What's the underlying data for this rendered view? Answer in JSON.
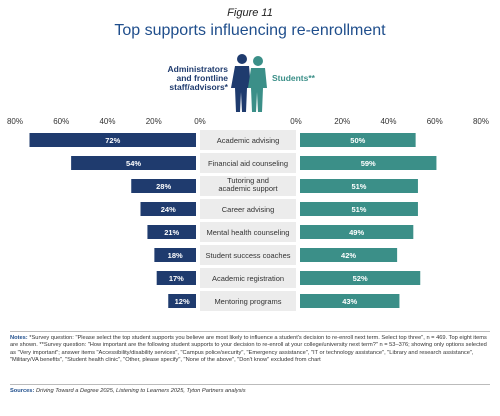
{
  "figure_label": "Figure 11",
  "title": "Top supports influencing re-enrollment",
  "legend": {
    "admin": "Administrators and frontline staff/advisors*",
    "students": "Students**"
  },
  "colors": {
    "admin": "#1f3b6e",
    "students": "#3b8f88",
    "label_bg": "#ececec"
  },
  "chart_data": {
    "type": "bar",
    "orientation": "horizontal-butterfly",
    "categories": [
      "Academic advising",
      "Financial aid counseling",
      "Tutoring and academic support",
      "Career advising",
      "Mental health counseling",
      "Student success coaches",
      "Academic registration",
      "Mentoring programs"
    ],
    "series": [
      {
        "name": "Administrators and frontline staff/advisors*",
        "values": [
          72,
          54,
          28,
          24,
          21,
          18,
          17,
          12
        ],
        "labels": [
          "72%",
          "54%",
          "28%",
          "24%",
          "21%",
          "18%",
          "17%",
          "12%"
        ]
      },
      {
        "name": "Students**",
        "values": [
          50,
          59,
          51,
          51,
          49,
          42,
          52,
          43
        ],
        "labels": [
          "50%",
          "59%",
          "51%",
          "51%",
          "49%",
          "42%",
          "52%",
          "43%"
        ]
      }
    ],
    "left_ticks": [
      "80%",
      "60%",
      "40%",
      "20%",
      "0%"
    ],
    "right_ticks": [
      "0%",
      "20%",
      "40%",
      "60%",
      "80%"
    ],
    "xlim": [
      0,
      80
    ]
  },
  "notes_label": "Notes:",
  "notes_text": "*Survey question: \"Please select the top student supports you believe are most likely to influence a student's decision to re-enroll next term. Select top three\", n = 469. Top eight items are shown. **Survey question: \"How important are the following student supports to your decision to re-enroll at your college/university next term?\" n = 53–376; showing only options selected as \"Very important\"; answer items \"Accessibility/disability services\", \"Campus police/security\", \"Emergency assistance\", \"IT or technology assistance\", \"Library and research assistance\", \"Military/VA benefits\", \"Student health clinic\", \"Other, please specify\", \"None of the above\", \"Don't know\" excluded from chart",
  "sources_label": "Sources:",
  "sources_text": "Driving Toward a Degree 2025, Listening to Learners 2025, Tyton Partners analysis"
}
